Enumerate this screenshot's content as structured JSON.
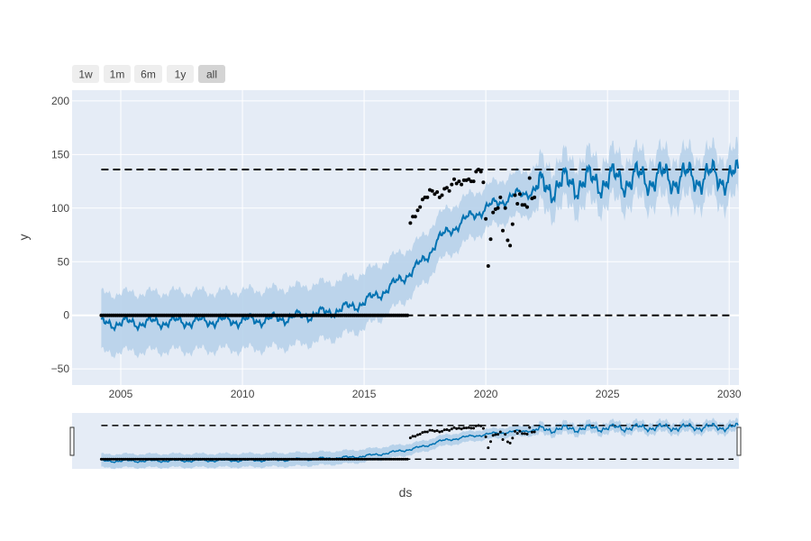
{
  "range_selector": {
    "buttons": [
      {
        "label": "1w",
        "active": false
      },
      {
        "label": "1m",
        "active": false
      },
      {
        "label": "6m",
        "active": false
      },
      {
        "label": "1y",
        "active": false
      },
      {
        "label": "all",
        "active": true
      }
    ]
  },
  "chart_data": {
    "type": "line",
    "title": "",
    "xlabel": "ds",
    "ylabel": "y",
    "xlim": [
      2003.0,
      2030.4
    ],
    "ylim": [
      -65,
      210
    ],
    "x_ticks": [
      2005,
      2010,
      2015,
      2020,
      2025,
      2030
    ],
    "x_tick_labels": [
      "2005",
      "2010",
      "2015",
      "2020",
      "2025",
      "2030"
    ],
    "y_ticks": [
      -50,
      0,
      50,
      100,
      150,
      200
    ],
    "y_tick_labels": [
      "−50",
      "0",
      "50",
      "100",
      "150",
      "200"
    ],
    "grid": true,
    "colors": {
      "forecast_line": "#0072B2",
      "uncertainty_band": "#b7d2ea",
      "actual_points": "#000000",
      "cap_floor_lines": "#000000",
      "plot_background": "#e5ecf6",
      "gridline": "#ffffff"
    },
    "reference_lines": [
      {
        "kind": "cap",
        "y": 136,
        "style": "dashed"
      },
      {
        "kind": "floor",
        "y": 0,
        "style": "dashed"
      }
    ],
    "series": [
      {
        "kind": "forecast",
        "x": [
          2004.2,
          2005.0,
          2006.0,
          2007.0,
          2008.0,
          2009.0,
          2010.0,
          2011.0,
          2012.0,
          2013.0,
          2014.0,
          2015.0,
          2016.0,
          2017.0,
          2017.5,
          2018.0,
          2019.0,
          2020.0,
          2021.0,
          2022.0,
          2023.0,
          2024.0,
          2025.0,
          2026.0,
          2027.0,
          2028.0,
          2029.0,
          2030.4
        ],
        "y": [
          -8,
          -7,
          -7,
          -6,
          -6,
          -5,
          -5,
          -4,
          -2,
          1,
          5,
          12,
          25,
          42,
          52,
          70,
          87,
          100,
          110,
          117,
          122,
          124,
          126,
          127,
          128,
          128,
          129,
          129
        ],
        "band_lower": [
          -35,
          -34,
          -34,
          -33,
          -33,
          -32,
          -32,
          -31,
          -29,
          -25,
          -20,
          -12,
          2,
          20,
          30,
          48,
          65,
          80,
          90,
          96,
          100,
          102,
          104,
          105,
          106,
          106,
          107,
          107
        ],
        "band_upper": [
          20,
          21,
          21,
          22,
          22,
          22,
          23,
          24,
          26,
          29,
          33,
          40,
          52,
          65,
          75,
          92,
          108,
          120,
          130,
          138,
          144,
          146,
          148,
          149,
          150,
          150,
          151,
          151
        ],
        "seasonal_amplitude": 10
      },
      {
        "kind": "actual",
        "segments": [
          {
            "x_start": 2004.2,
            "x_end": 2016.8,
            "y": 0,
            "step": 0.0833
          }
        ],
        "x": [
          2016.9,
          2017.0,
          2017.1,
          2017.2,
          2017.3,
          2017.4,
          2017.5,
          2017.6,
          2017.7,
          2017.8,
          2017.9,
          2018.0,
          2018.1,
          2018.2,
          2018.3,
          2018.4,
          2018.5,
          2018.6,
          2018.7,
          2018.8,
          2018.9,
          2019.0,
          2019.1,
          2019.2,
          2019.3,
          2019.4,
          2019.5,
          2019.6,
          2019.7,
          2019.8,
          2019.9,
          2020.0,
          2020.1,
          2020.2,
          2020.3,
          2020.4,
          2020.5,
          2020.6,
          2020.7,
          2020.8,
          2020.9,
          2021.0,
          2021.1,
          2021.2,
          2021.3,
          2021.4,
          2021.5,
          2021.6,
          2021.7,
          2021.8,
          2021.9,
          2022.0
        ],
        "y": [
          86,
          92,
          92,
          98,
          101,
          108,
          110,
          110,
          117,
          116,
          113,
          115,
          110,
          112,
          118,
          119,
          116,
          122,
          127,
          123,
          125,
          122,
          126,
          126,
          127,
          125,
          125,
          134,
          136,
          134,
          124,
          90,
          46,
          71,
          96,
          99,
          100,
          110,
          79,
          100,
          70,
          65,
          85,
          112,
          104,
          113,
          103,
          103,
          101,
          128,
          109,
          110
        ]
      }
    ],
    "range_slider": {
      "present": true,
      "xlim": [
        2003.0,
        2030.4
      ]
    }
  }
}
